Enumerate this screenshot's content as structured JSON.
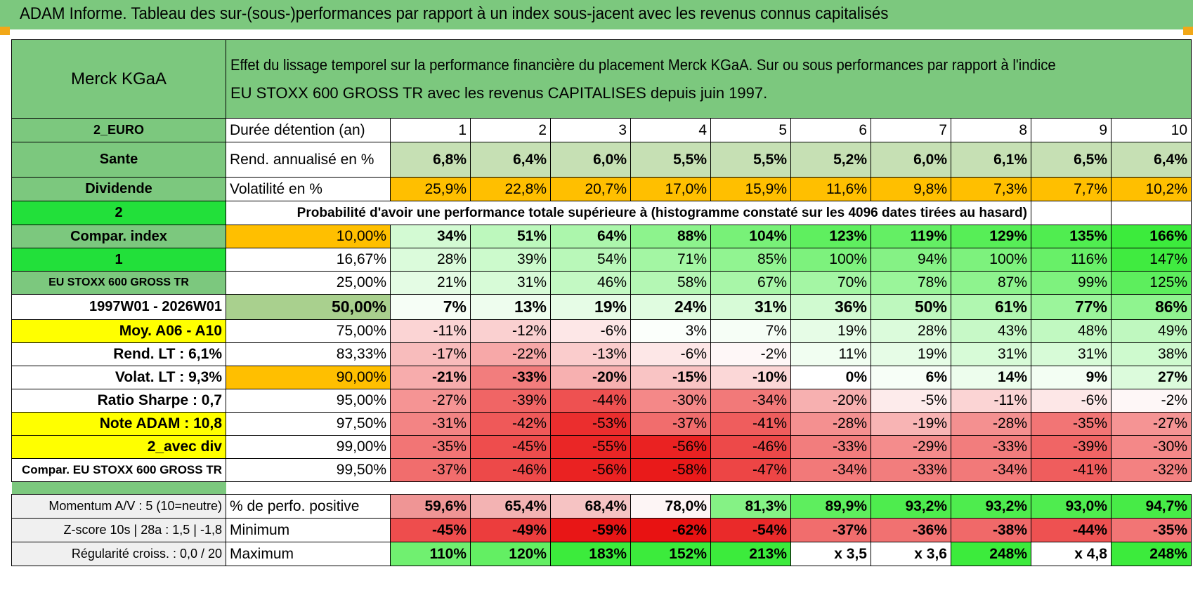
{
  "title": "ADAM Informe. Tableau des sur-(sous-)performances par rapport à un index sous-jacent avec les revenus connus capitalisés",
  "header": {
    "company": "Merck KGaA",
    "description_line1": "Effet du lissage temporel sur la performance financière du placement Merck KGaA. Sur ou sous performances par rapport à l'indice",
    "description_line2": "EU STOXX 600 GROSS TR avec les revenus CAPITALISES depuis juin 1997."
  },
  "left_labels": {
    "currency": "2_EURO",
    "sector": "Sante",
    "type": "Dividende",
    "n2": "2",
    "compar_index": "Compar. index",
    "n1": "1",
    "index_name": "EU STOXX 600 GROSS TR",
    "period": "1997W01 - 2026W01",
    "moy": "Moy. A06 - A10",
    "rend_lt": "Rend. LT :    6,1%",
    "volat_lt": "Volat. LT :    9,3%",
    "sharpe": "Ratio Sharpe :     0,7",
    "note": "Note ADAM : 10,8",
    "avec_div": "2_avec div",
    "compar_full": "Compar. EU STOXX 600 GROSS TR",
    "momentum": "Momentum A/V : 5 (10=neutre)",
    "zscore": "Z-score 10s | 28a : 1,5 | -1,8",
    "regularite": "Régularité croiss. : 0,0 / 20"
  },
  "row_labels": {
    "duree": "Durée détention (an)",
    "rend": "Rend. annualisé en %",
    "volat": "Volatilité en %",
    "proba": "Probabilité d'avoir une performance totale supérieure à (histogramme constaté sur les 4096 dates tirées au hasard)",
    "pct_pos": "% de perfo. positive",
    "minimum": "Minimum",
    "maximum": "Maximum"
  },
  "years": [
    "1",
    "2",
    "3",
    "4",
    "5",
    "6",
    "7",
    "8",
    "9",
    "10"
  ],
  "rend": [
    "6,8%",
    "6,4%",
    "6,0%",
    "5,5%",
    "5,5%",
    "5,2%",
    "6,0%",
    "6,1%",
    "6,5%",
    "6,4%"
  ],
  "volat": [
    "25,9%",
    "22,8%",
    "20,7%",
    "17,0%",
    "15,9%",
    "11,6%",
    "9,8%",
    "7,3%",
    "7,7%",
    "10,2%"
  ],
  "percentiles": [
    {
      "p": "10,00%",
      "vals": [
        "34%",
        "51%",
        "64%",
        "88%",
        "104%",
        "123%",
        "119%",
        "129%",
        "135%",
        "166%"
      ]
    },
    {
      "p": "16,67%",
      "vals": [
        "28%",
        "39%",
        "54%",
        "71%",
        "85%",
        "100%",
        "94%",
        "100%",
        "116%",
        "147%"
      ]
    },
    {
      "p": "25,00%",
      "vals": [
        "21%",
        "31%",
        "46%",
        "58%",
        "67%",
        "70%",
        "78%",
        "87%",
        "99%",
        "125%"
      ]
    },
    {
      "p": "50,00%",
      "vals": [
        "7%",
        "13%",
        "19%",
        "24%",
        "31%",
        "36%",
        "50%",
        "61%",
        "77%",
        "86%"
      ]
    },
    {
      "p": "75,00%",
      "vals": [
        "-11%",
        "-12%",
        "-6%",
        "3%",
        "7%",
        "19%",
        "28%",
        "43%",
        "48%",
        "49%"
      ]
    },
    {
      "p": "83,33%",
      "vals": [
        "-17%",
        "-22%",
        "-13%",
        "-6%",
        "-2%",
        "11%",
        "19%",
        "31%",
        "31%",
        "38%"
      ]
    },
    {
      "p": "90,00%",
      "vals": [
        "-21%",
        "-33%",
        "-20%",
        "-15%",
        "-10%",
        "0%",
        "6%",
        "14%",
        "9%",
        "27%"
      ]
    },
    {
      "p": "95,00%",
      "vals": [
        "-27%",
        "-39%",
        "-44%",
        "-30%",
        "-34%",
        "-20%",
        "-5%",
        "-11%",
        "-6%",
        "-2%"
      ]
    },
    {
      "p": "97,50%",
      "vals": [
        "-31%",
        "-42%",
        "-53%",
        "-37%",
        "-41%",
        "-28%",
        "-19%",
        "-28%",
        "-35%",
        "-27%"
      ]
    },
    {
      "p": "99,00%",
      "vals": [
        "-35%",
        "-45%",
        "-55%",
        "-56%",
        "-46%",
        "-33%",
        "-29%",
        "-33%",
        "-39%",
        "-30%"
      ]
    },
    {
      "p": "99,50%",
      "vals": [
        "-37%",
        "-46%",
        "-56%",
        "-58%",
        "-47%",
        "-34%",
        "-33%",
        "-34%",
        "-41%",
        "-32%"
      ]
    }
  ],
  "pct_pos": [
    "59,6%",
    "65,4%",
    "68,4%",
    "78,0%",
    "81,3%",
    "89,9%",
    "93,2%",
    "93,2%",
    "93,0%",
    "94,7%"
  ],
  "minimum": [
    "-45%",
    "-49%",
    "-59%",
    "-62%",
    "-54%",
    "-37%",
    "-36%",
    "-38%",
    "-44%",
    "-35%"
  ],
  "maximum": [
    "110%",
    "120%",
    "183%",
    "152%",
    "213%",
    "x 3,5",
    "x 3,6",
    "248%",
    "x 4,8",
    "248%"
  ],
  "colors": {
    "header_green": "#7cc87e",
    "bright_green": "#22e03a",
    "orange": "#ffbf00",
    "yellow": "#ffff00",
    "red_text": "#e8141a"
  }
}
